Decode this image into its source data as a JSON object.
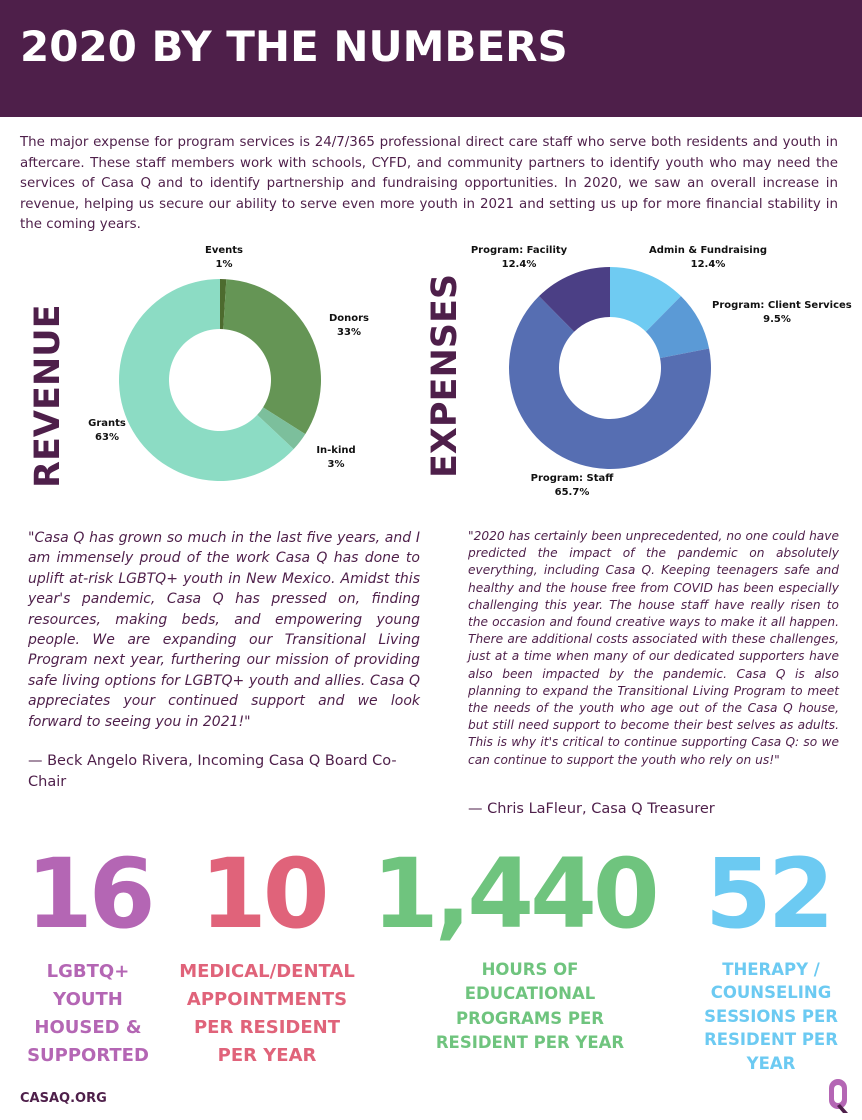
{
  "header": {
    "title": "2020 BY THE NUMBERS"
  },
  "intro": "The major expense for program services is 24/7/365 professional direct care staff who serve both residents and youth in aftercare. These staff members work with schools, CYFD, and community partners to identify youth who may need the services of Casa Q and to identify partnership and fundraising opportunities. In 2020, we saw an overall increase in revenue, helping us secure our ability to serve even more youth in 2021 and setting us up for more financial stability in the coming years.",
  "chart_data": [
    {
      "type": "pie",
      "title": "REVENUE",
      "slices": [
        {
          "name": "Events",
          "value": 1,
          "label": "1%",
          "color": "#4d6b2e"
        },
        {
          "name": "Donors",
          "value": 33,
          "label": "33%",
          "color": "#659555"
        },
        {
          "name": "In-kind",
          "value": 3,
          "label": "3%",
          "color": "#7cbf9c"
        },
        {
          "name": "Grants",
          "value": 63,
          "label": "63%",
          "color": "#8cdcc4"
        }
      ]
    },
    {
      "type": "pie",
      "title": "EXPENSES",
      "slices": [
        {
          "name": "Admin & Fundraising",
          "value": 12.4,
          "label": "12.4%",
          "color": "#6fcbf2"
        },
        {
          "name": "Program: Client Services",
          "value": 9.5,
          "label": "9.5%",
          "color": "#5b9ad6"
        },
        {
          "name": "Program: Staff",
          "value": 65.7,
          "label": "65.7%",
          "color": "#566eb2"
        },
        {
          "name": "Program: Facility",
          "value": 12.4,
          "label": "12.4%",
          "color": "#4b3f85"
        }
      ]
    }
  ],
  "quotes": {
    "left": {
      "text": "\"Casa Q has grown so much in the last five years, and I am immensely proud of the work Casa Q has done to uplift at-risk LGBTQ+ youth in New Mexico. Amidst this year's pandemic, Casa Q has pressed on, finding resources, making beds, and empowering young people. We are expanding our Transitional Living Program next year, furthering our mission of providing safe living options for LGBTQ+ youth and allies. Casa Q appreciates your continued support and we look forward to seeing you in 2021!\"",
      "attribution": "— Beck Angelo Rivera, Incoming Casa Q Board Co-Chair"
    },
    "right": {
      "text": "\"2020 has certainly been unprecedented, no one could have predicted the impact of the pandemic on absolutely everything, including Casa Q. Keeping teenagers safe and healthy and the house free from COVID has been especially challenging this year. The house staff have really risen to the occasion and found creative ways to make it all happen. There are additional costs associated with these challenges, just at a time when many of our dedicated supporters have also been impacted by the pandemic.  Casa Q is also planning to expand the Transitional Living Program to meet the needs of the youth who age out of the Casa Q house, but still need support to become their best selves as adults.  This is why it's critical to continue supporting Casa Q: so we can continue to support the youth who rely on us!\"",
      "attribution": "— Chris LaFleur, Casa Q Treasurer"
    }
  },
  "stats": [
    {
      "number": "16",
      "label": "LGBTQ+ YOUTH HOUSED & SUPPORTED",
      "color": "#b466b4"
    },
    {
      "number": "10",
      "label": "MEDICAL/DENTAL APPOINTMENTS PER RESIDENT PER YEAR",
      "color": "#e0637a"
    },
    {
      "number": "1,440",
      "label": "HOURS OF EDUCATIONAL PROGRAMS PER RESIDENT PER YEAR",
      "color": "#6fc47e"
    },
    {
      "number": "52",
      "label": "THERAPY / COUNSELING SESSIONS PER RESIDENT PER YEAR",
      "color": "#6ccaf2"
    }
  ],
  "footer": {
    "url": "CASAQ.ORG"
  },
  "colors": {
    "brand": "#4e1f4a"
  }
}
